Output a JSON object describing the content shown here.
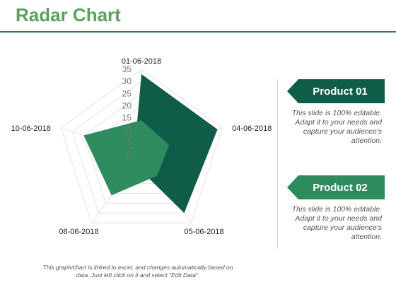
{
  "header": {
    "title": "Radar Chart"
  },
  "legend": {
    "product1": {
      "label": "Product 01",
      "description": "This slide is 100% editable. Adapt it to your needs and capture your audience's attention."
    },
    "product2": {
      "label": "Product 02",
      "description": "This slide is 100% editable. Adapt it to your needs and capture your audience's attention."
    }
  },
  "footer": {
    "note": "This graph/chart is linked to excel, and changes automatically based on data. Just left click on it and select \"Edit Data\"."
  },
  "chart_data": {
    "type": "radar",
    "axes": [
      "01-06-2018",
      "04-06-2018",
      "05-06-2018",
      "08-06-2018",
      "10-06-2018"
    ],
    "ticks": [
      0,
      5,
      10,
      15,
      20,
      25,
      30,
      35
    ],
    "rmax": 35,
    "grid": true,
    "series": [
      {
        "name": "Product 01",
        "color": "#0f5c48",
        "values": [
          33,
          33,
          30,
          5,
          3
        ]
      },
      {
        "name": "Product 02",
        "color": "#2e8b5e",
        "values": [
          14,
          12,
          11,
          21,
          25
        ]
      }
    ]
  }
}
